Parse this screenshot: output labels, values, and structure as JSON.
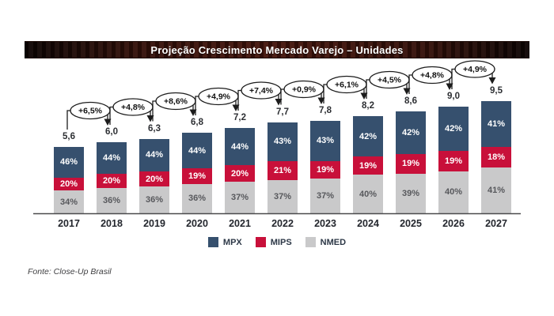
{
  "title": "Projeção Crescimento Mercado Varejo – Unidades",
  "footer": {
    "source": "Fonte: Close-Up Brasil"
  },
  "legend": {
    "items": [
      {
        "key": "mpx",
        "label": "MPX"
      },
      {
        "key": "mips",
        "label": "MIPS"
      },
      {
        "key": "nmed",
        "label": "NMED"
      }
    ]
  },
  "colors": {
    "mpx": "#36506e",
    "mips": "#c8103a",
    "nmed": "#c9c9ca",
    "nmed_text": "#57585c",
    "axis": "#4a4a4c",
    "callout_stroke": "#1c1c1c",
    "callout_fill": "#ffffff",
    "callout_text": "#111111",
    "title_text": "#ffffff"
  },
  "chart_data": {
    "type": "bar",
    "stacked": true,
    "title": "Projeção Crescimento Mercado Varejo – Unidades",
    "categories": [
      "2017",
      "2018",
      "2019",
      "2020",
      "2021",
      "2022",
      "2023",
      "2024",
      "2025",
      "2026",
      "2027"
    ],
    "totals": [
      5.6,
      6.0,
      6.3,
      6.8,
      7.2,
      7.7,
      7.8,
      8.2,
      8.6,
      9.0,
      9.5
    ],
    "total_labels": [
      "5,6",
      "6,0",
      "6,3",
      "6,8",
      "7,2",
      "7,7",
      "7,8",
      "8,2",
      "8,6",
      "9,0",
      "9,5"
    ],
    "series": [
      {
        "name": "MPX",
        "key": "mpx",
        "values": [
          46,
          44,
          44,
          44,
          44,
          43,
          43,
          42,
          42,
          42,
          41
        ],
        "labels": [
          "46%",
          "44%",
          "44%",
          "44%",
          "44%",
          "43%",
          "43%",
          "42%",
          "42%",
          "42%",
          "41%"
        ]
      },
      {
        "name": "MIPS",
        "key": "mips",
        "values": [
          20,
          20,
          20,
          19,
          20,
          21,
          19,
          19,
          19,
          19,
          18
        ],
        "labels": [
          "20%",
          "20%",
          "20%",
          "19%",
          "20%",
          "21%",
          "19%",
          "19%",
          "19%",
          "19%",
          "18%"
        ]
      },
      {
        "name": "NMED",
        "key": "nmed",
        "values": [
          34,
          36,
          36,
          36,
          37,
          37,
          37,
          40,
          39,
          40,
          41
        ],
        "labels": [
          "34%",
          "36%",
          "36%",
          "36%",
          "37%",
          "37%",
          "37%",
          "40%",
          "39%",
          "40%",
          "41%"
        ]
      }
    ],
    "growth_labels": [
      "+6,5%",
      "+4,8%",
      "+8,6%",
      "+4,9%",
      "+7,4%",
      "+0,9%",
      "+6,1%",
      "+4,5%",
      "+4,8%",
      "+4,9%"
    ],
    "legend_position": "bottom",
    "grid": false,
    "source": "Fonte: Close-Up Brasil"
  }
}
